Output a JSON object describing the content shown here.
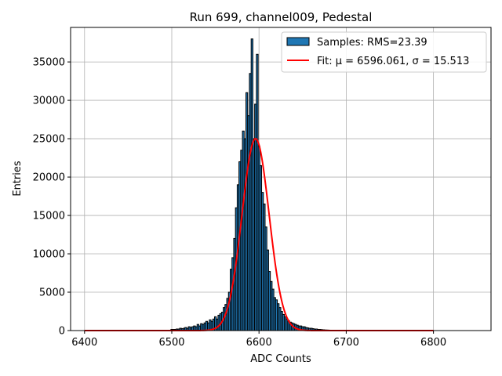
{
  "chart_data": {
    "type": "bar",
    "title": "Run 699, channel009, Pedestal",
    "xlabel": "ADC Counts",
    "ylabel": "Entries",
    "xlim": [
      6384,
      6866
    ],
    "ylim": [
      0,
      39500
    ],
    "xticks": [
      6400,
      6500,
      6600,
      6700,
      6800
    ],
    "yticks": [
      0,
      5000,
      10000,
      15000,
      20000,
      25000,
      30000,
      35000
    ],
    "grid": true,
    "legend_position": "top-right",
    "histogram": {
      "name": "Samples: RMS=23.39",
      "color": "#1f77b4",
      "edgecolor": "#000000",
      "bin_width": 2,
      "x": [
        6500,
        6502,
        6504,
        6506,
        6508,
        6510,
        6512,
        6514,
        6516,
        6518,
        6520,
        6522,
        6524,
        6526,
        6528,
        6530,
        6532,
        6534,
        6536,
        6538,
        6540,
        6542,
        6544,
        6546,
        6548,
        6550,
        6552,
        6554,
        6556,
        6558,
        6560,
        6562,
        6564,
        6566,
        6568,
        6570,
        6572,
        6574,
        6576,
        6578,
        6580,
        6582,
        6584,
        6586,
        6588,
        6590,
        6592,
        6594,
        6596,
        6598,
        6600,
        6602,
        6604,
        6606,
        6608,
        6610,
        6612,
        6614,
        6616,
        6618,
        6620,
        6622,
        6624,
        6626,
        6628,
        6630,
        6632,
        6634,
        6636,
        6638,
        6640,
        6642,
        6644,
        6646,
        6648,
        6650,
        6652,
        6654,
        6656,
        6658,
        6660,
        6662,
        6664,
        6666,
        6668,
        6670,
        6672,
        6674,
        6676,
        6678,
        6680,
        6682,
        6684,
        6686,
        6688,
        6690,
        6692,
        6694,
        6696,
        6698,
        6700
      ],
      "values": [
        150,
        150,
        150,
        200,
        200,
        300,
        250,
        300,
        400,
        300,
        500,
        400,
        500,
        600,
        500,
        800,
        600,
        900,
        800,
        1000,
        1200,
        1000,
        1400,
        1200,
        1500,
        1800,
        1500,
        2000,
        2200,
        2400,
        3000,
        3400,
        4200,
        5000,
        8000,
        9500,
        12000,
        16000,
        19000,
        22000,
        23500,
        26000,
        25000,
        31000,
        28000,
        33500,
        38000,
        25000,
        29500,
        36000,
        24000,
        21500,
        18000,
        16500,
        13500,
        10500,
        7700,
        6400,
        5400,
        4300,
        4000,
        3500,
        3000,
        2500,
        2100,
        1800,
        1500,
        1300,
        1100,
        1000,
        900,
        800,
        700,
        600,
        600,
        500,
        500,
        400,
        350,
        300,
        300,
        250,
        200,
        200,
        150,
        150,
        120,
        100,
        80,
        70,
        60,
        50,
        40,
        30,
        30,
        20,
        20,
        20,
        10,
        10,
        10
      ]
    },
    "fit": {
      "name": "Fit: μ = 6596.061, σ = 15.513",
      "mu": 6596.061,
      "sigma": 15.513,
      "amplitude": 25000,
      "x_range": [
        6400,
        6800
      ],
      "color": "#ff0000"
    }
  }
}
